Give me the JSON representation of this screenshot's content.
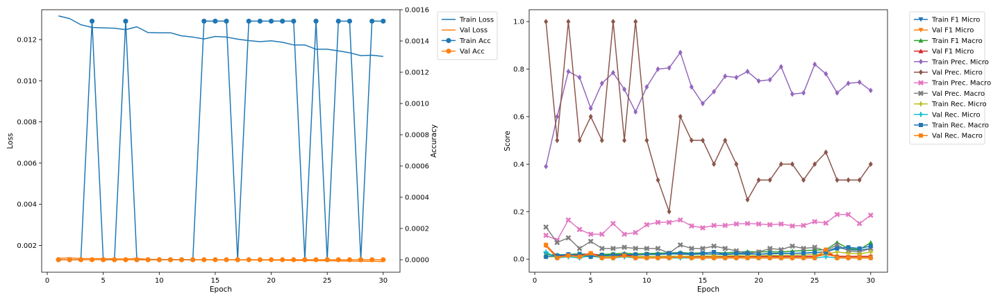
{
  "chart_data": [
    {
      "type": "line",
      "title": "",
      "xlabel": "Epoch",
      "ylabel": "Loss",
      "y2label": "Accuracy",
      "xlim": [
        -0.5,
        31.5
      ],
      "ylim": [
        0.0007,
        0.01345
      ],
      "y2lim": [
        -8e-05,
        0.0016
      ],
      "xticks": [
        0,
        5,
        10,
        15,
        20,
        25,
        30
      ],
      "yticks": [
        0.002,
        0.004,
        0.006,
        0.008,
        0.01,
        0.012
      ],
      "y2ticks": [
        0.0,
        0.0002,
        0.0004,
        0.0006,
        0.0008,
        0.001,
        0.0012,
        0.0014,
        0.0016
      ],
      "legend_position": "outside-top-right",
      "x": [
        1,
        2,
        3,
        4,
        5,
        6,
        7,
        8,
        9,
        10,
        11,
        12,
        13,
        14,
        15,
        16,
        17,
        18,
        19,
        20,
        21,
        22,
        23,
        24,
        25,
        26,
        27,
        28,
        29,
        30
      ],
      "series": [
        {
          "name": "Train Loss",
          "axis": "left",
          "color": "#1f77b4",
          "marker": "none",
          "values": [
            0.01315,
            0.01302,
            0.01272,
            0.01259,
            0.01257,
            0.01255,
            0.01248,
            0.01262,
            0.01234,
            0.01233,
            0.01233,
            0.01218,
            0.01212,
            0.01203,
            0.01215,
            0.01212,
            0.01202,
            0.01195,
            0.0119,
            0.01194,
            0.01187,
            0.01174,
            0.01174,
            0.01153,
            0.01153,
            0.01145,
            0.01136,
            0.01122,
            0.01124,
            0.01118
          ]
        },
        {
          "name": "Val Loss",
          "axis": "left",
          "color": "#ff7f0e",
          "marker": "none",
          "values": [
            0.00138,
            0.0014,
            0.00136,
            0.00136,
            0.00136,
            0.00135,
            0.00134,
            0.00137,
            0.00133,
            0.00132,
            0.00132,
            0.00131,
            0.0013,
            0.00131,
            0.0013,
            0.0013,
            0.0013,
            0.0013,
            0.00129,
            0.00129,
            0.00128,
            0.00127,
            0.00127,
            0.00126,
            0.00126,
            0.00125,
            0.00124,
            0.00123,
            0.00123,
            0.00122
          ]
        },
        {
          "name": "Train Acc",
          "axis": "right",
          "color": "#1f77b4",
          "marker": "circle",
          "values": [
            0,
            0,
            0,
            0.001527,
            0,
            0,
            0.001527,
            0,
            0,
            0,
            0,
            0,
            0,
            0.001527,
            0.001527,
            0.001527,
            0,
            0.001527,
            0.001527,
            0.001527,
            0.001527,
            0.001527,
            0,
            0.001527,
            0,
            0.001527,
            0.001527,
            0,
            0.001527,
            0.001527
          ]
        },
        {
          "name": "Val Acc",
          "axis": "right",
          "color": "#ff7f0e",
          "marker": "circle",
          "values": [
            0,
            0,
            0,
            0,
            0,
            0,
            0,
            0,
            0,
            0,
            0,
            0,
            0,
            0,
            0,
            0,
            0,
            0,
            0,
            0,
            0,
            0,
            0,
            0,
            0,
            0,
            0,
            0,
            0,
            0
          ]
        }
      ]
    },
    {
      "type": "line",
      "title": "",
      "xlabel": "Epoch",
      "ylabel": "Score",
      "xlim": [
        -0.5,
        31.5
      ],
      "ylim": [
        -0.055,
        1.05
      ],
      "xticks": [
        0,
        5,
        10,
        15,
        20,
        25,
        30
      ],
      "yticks": [
        0.0,
        0.2,
        0.4,
        0.6,
        0.8,
        1.0
      ],
      "legend_position": "outside-top-right",
      "x": [
        1,
        2,
        3,
        4,
        5,
        6,
        7,
        8,
        9,
        10,
        11,
        12,
        13,
        14,
        15,
        16,
        17,
        18,
        19,
        20,
        21,
        22,
        23,
        24,
        25,
        26,
        27,
        28,
        29,
        30
      ],
      "series": [
        {
          "name": "Train F1 Micro",
          "color": "#1f77b4",
          "marker": "tri-down",
          "values": [
            0.02,
            0.015,
            0.02,
            0.022,
            0.02,
            0.018,
            0.02,
            0.019,
            0.02,
            0.021,
            0.02,
            0.022,
            0.021,
            0.02,
            0.022,
            0.021,
            0.02,
            0.022,
            0.021,
            0.022,
            0.022,
            0.024,
            0.024,
            0.026,
            0.028,
            0.03,
            0.05,
            0.04,
            0.038,
            0.045
          ]
        },
        {
          "name": "Val F1 Micro",
          "color": "#ff7f0e",
          "marker": "tri-down",
          "values": [
            0.055,
            0.005,
            0.015,
            0.01,
            0.02,
            0.01,
            0.01,
            0.015,
            0.01,
            0.01,
            0.01,
            0.01,
            0.01,
            0.01,
            0.01,
            0.01,
            0.01,
            0.01,
            0.01,
            0.01,
            0.01,
            0.01,
            0.01,
            0.01,
            0.01,
            0.02,
            0.01,
            0.01,
            0.01,
            0.01
          ]
        },
        {
          "name": "Train F1 Macro",
          "color": "#2ca02c",
          "marker": "tri-up",
          "values": [
            0.02,
            0.018,
            0.02,
            0.022,
            0.018,
            0.02,
            0.022,
            0.025,
            0.022,
            0.024,
            0.025,
            0.026,
            0.028,
            0.025,
            0.027,
            0.028,
            0.026,
            0.03,
            0.032,
            0.03,
            0.032,
            0.03,
            0.034,
            0.036,
            0.038,
            0.04,
            0.07,
            0.045,
            0.04,
            0.07
          ]
        },
        {
          "name": "Val F1 Micro",
          "color": "#d62728",
          "marker": "tri-up",
          "values": [
            0.06,
            0.01,
            0.02,
            0.015,
            0.025,
            0.012,
            0.012,
            0.018,
            0.012,
            0.012,
            0.012,
            0.012,
            0.012,
            0.012,
            0.012,
            0.012,
            0.012,
            0.012,
            0.012,
            0.012,
            0.012,
            0.012,
            0.012,
            0.012,
            0.012,
            0.025,
            0.012,
            0.012,
            0.012,
            0.012
          ]
        },
        {
          "name": "Train Prec. Micro",
          "color": "#9467bd",
          "marker": "diamond",
          "values": [
            0.39,
            0.6,
            0.79,
            0.765,
            0.635,
            0.74,
            0.785,
            0.715,
            0.62,
            0.725,
            0.8,
            0.805,
            0.87,
            0.725,
            0.655,
            0.705,
            0.77,
            0.765,
            0.79,
            0.75,
            0.755,
            0.81,
            0.695,
            0.7,
            0.82,
            0.78,
            0.7,
            0.74,
            0.745,
            0.71
          ]
        },
        {
          "name": "Val Prec. Micro",
          "color": "#8c564b",
          "marker": "diamond",
          "values": [
            1.0,
            0.5,
            1.0,
            0.5,
            0.6,
            0.5,
            1.0,
            0.5,
            1.0,
            0.5,
            0.333,
            0.2,
            0.6,
            0.5,
            0.5,
            0.4,
            0.5,
            0.4,
            0.25,
            0.333,
            0.333,
            0.4,
            0.4,
            0.333,
            0.4,
            0.45,
            0.333,
            0.333,
            0.333,
            0.4
          ]
        },
        {
          "name": "Train Prec. Macro",
          "color": "#e377c2",
          "marker": "x",
          "values": [
            0.1,
            0.08,
            0.165,
            0.125,
            0.105,
            0.105,
            0.15,
            0.105,
            0.112,
            0.145,
            0.155,
            0.155,
            0.165,
            0.14,
            0.132,
            0.142,
            0.142,
            0.148,
            0.15,
            0.148,
            0.145,
            0.148,
            0.14,
            0.142,
            0.158,
            0.152,
            0.188,
            0.188,
            0.15,
            0.185
          ]
        },
        {
          "name": "Val Prec. Macro",
          "color": "#7f7f7f",
          "marker": "x",
          "values": [
            0.135,
            0.07,
            0.09,
            0.045,
            0.075,
            0.045,
            0.045,
            0.05,
            0.045,
            0.045,
            0.045,
            0.025,
            0.06,
            0.045,
            0.045,
            0.055,
            0.045,
            0.035,
            0.025,
            0.03,
            0.045,
            0.04,
            0.055,
            0.045,
            0.05,
            0.035,
            0.06,
            0.035,
            0.03,
            0.045
          ]
        },
        {
          "name": "Train Rec. Micro",
          "color": "#bcbd22",
          "marker": "plus",
          "values": [
            0.01,
            0.01,
            0.01,
            0.012,
            0.01,
            0.011,
            0.012,
            0.01,
            0.012,
            0.011,
            0.012,
            0.013,
            0.012,
            0.013,
            0.014,
            0.013,
            0.014,
            0.015,
            0.014,
            0.015,
            0.016,
            0.016,
            0.017,
            0.018,
            0.02,
            0.022,
            0.03,
            0.025,
            0.022,
            0.03
          ]
        },
        {
          "name": "Val Rec. Micro",
          "color": "#17becf",
          "marker": "plus",
          "values": [
            0.03,
            0.005,
            0.01,
            0.005,
            0.015,
            0.005,
            0.005,
            0.01,
            0.005,
            0.005,
            0.005,
            0.005,
            0.005,
            0.005,
            0.005,
            0.005,
            0.005,
            0.005,
            0.005,
            0.005,
            0.005,
            0.005,
            0.005,
            0.005,
            0.005,
            0.01,
            0.005,
            0.005,
            0.005,
            0.005
          ]
        },
        {
          "name": "Train Rec. Macro",
          "color": "#1f77b4",
          "marker": "square",
          "values": [
            0.01,
            0.015,
            0.02,
            0.018,
            0.01,
            0.015,
            0.015,
            0.02,
            0.018,
            0.02,
            0.02,
            0.025,
            0.025,
            0.022,
            0.025,
            0.03,
            0.02,
            0.025,
            0.025,
            0.02,
            0.025,
            0.025,
            0.025,
            0.025,
            0.028,
            0.03,
            0.045,
            0.05,
            0.045,
            0.055
          ]
        },
        {
          "name": "Val Rec. Macro",
          "color": "#ff7f0e",
          "marker": "square",
          "values": [
            0.06,
            0.005,
            0.015,
            0.01,
            0.025,
            0.005,
            0.005,
            0.015,
            0.005,
            0.005,
            0.005,
            0.005,
            0.01,
            0.005,
            0.005,
            0.005,
            0.005,
            0.005,
            0.005,
            0.005,
            0.005,
            0.005,
            0.005,
            0.005,
            0.005,
            0.04,
            0.005,
            0.005,
            0.005,
            0.005
          ]
        }
      ]
    }
  ]
}
